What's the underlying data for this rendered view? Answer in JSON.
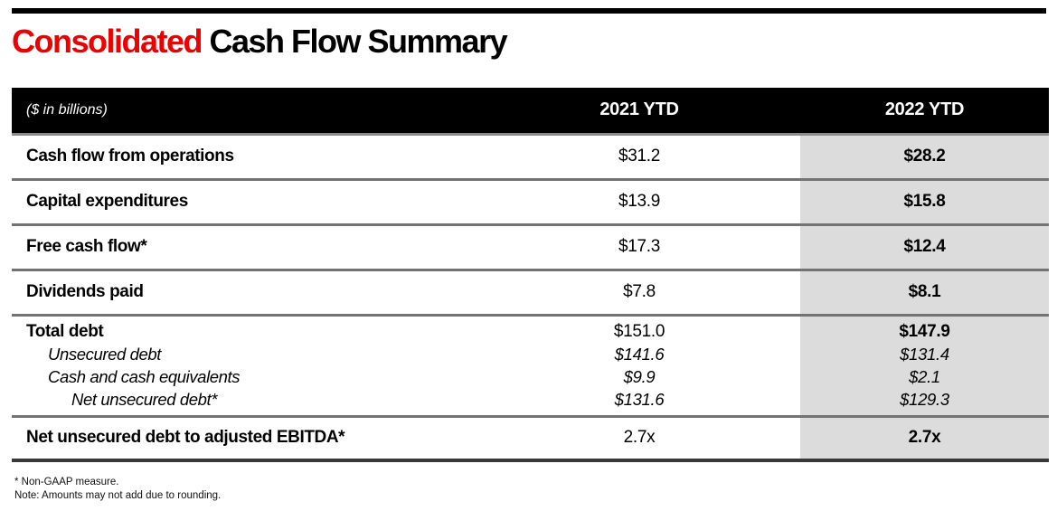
{
  "title": {
    "highlight": "Consolidated",
    "rest": " Cash Flow Summary"
  },
  "table": {
    "header": {
      "caption": "($ in billions)",
      "col_2021": "2021 YTD",
      "col_2022": "2022 YTD"
    },
    "rows": [
      {
        "label": "Cash flow from operations",
        "y2021": "$31.2",
        "y2022": "$28.2"
      },
      {
        "label": "Capital expenditures",
        "y2021": "$13.9",
        "y2022": "$15.8"
      },
      {
        "label": "Free cash flow*",
        "y2021": "$17.3",
        "y2022": "$12.4"
      },
      {
        "label": "Dividends paid",
        "y2021": "$7.8",
        "y2022": "$8.1"
      }
    ],
    "debt_group": [
      {
        "label": "Total debt",
        "y2021": "$151.0",
        "y2022": "$147.9"
      },
      {
        "label": "Unsecured debt",
        "y2021": "$141.6",
        "y2022": "$131.4"
      },
      {
        "label": "Cash and cash equivalents",
        "y2021": "$9.9",
        "y2022": "$2.1"
      },
      {
        "label": "Net unsecured debt*",
        "y2021": "$131.6",
        "y2022": "$129.3"
      }
    ],
    "ratio_row": {
      "label": "Net unsecured debt to adjusted EBITDA*",
      "y2021": "2.7x",
      "y2022": "2.7x"
    },
    "footnotes": [
      "* Non-GAAP measure.",
      "Note: Amounts may not add due to rounding."
    ]
  },
  "colors": {
    "accent_red": "#ee0000",
    "header_bg": "#000000",
    "highlight_column_bg": "#dcdcdc",
    "row_separator": "#737373",
    "bottom_border": "#383838"
  }
}
